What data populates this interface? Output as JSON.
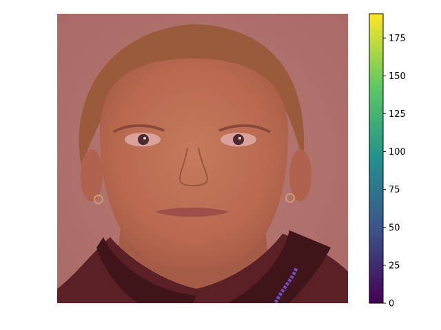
{
  "image": {
    "subject": "portrait-face",
    "overlay_tint": "#b0443c",
    "background_color": "#b7726f"
  },
  "colorbar": {
    "colormap": "viridis",
    "colors": [
      "#440154",
      "#3b528b",
      "#21918c",
      "#5ec962",
      "#fde725"
    ],
    "min": 0,
    "max": 191,
    "ticks": [
      {
        "value": 0,
        "label": "0"
      },
      {
        "value": 25,
        "label": "25"
      },
      {
        "value": 50,
        "label": "50"
      },
      {
        "value": 75,
        "label": "75"
      },
      {
        "value": 100,
        "label": "100"
      },
      {
        "value": 125,
        "label": "125"
      },
      {
        "value": 150,
        "label": "150"
      },
      {
        "value": 175,
        "label": "175"
      }
    ]
  }
}
